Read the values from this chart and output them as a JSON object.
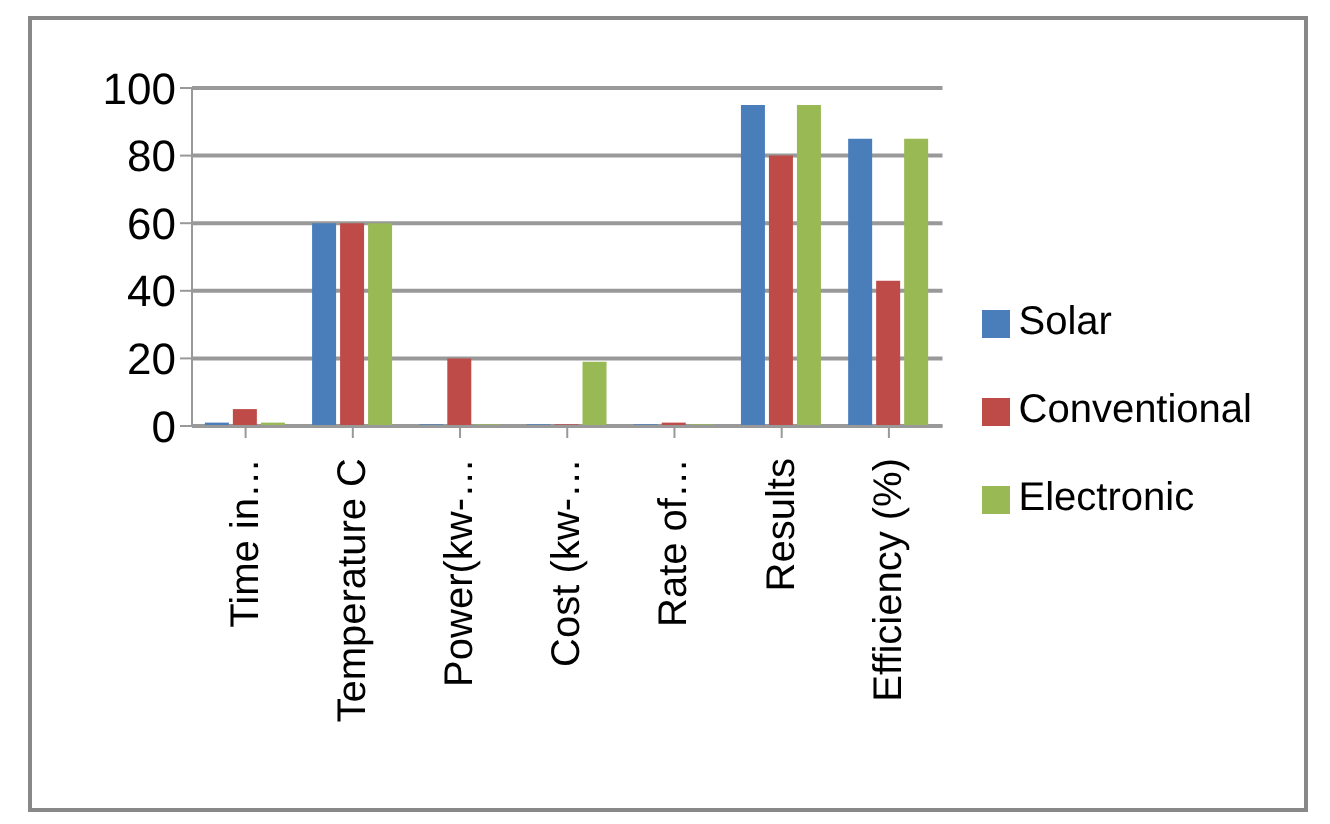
{
  "chart_data": {
    "type": "bar",
    "categories": [
      "Time in…",
      "Temperature C",
      "Power(kw-…",
      "Cost (kw-…",
      "Rate of…",
      "Results",
      "Efficiency (%)"
    ],
    "series": [
      {
        "name": "Solar",
        "color": "#4a7ebb",
        "values": [
          1,
          60,
          0.5,
          0.5,
          0.5,
          95,
          85
        ]
      },
      {
        "name": "Conventional",
        "color": "#be4b48",
        "values": [
          5,
          60,
          20,
          0.5,
          1,
          80,
          43
        ]
      },
      {
        "name": "Electronic",
        "color": "#98b954",
        "values": [
          1,
          60,
          0.5,
          19,
          0.5,
          95,
          85
        ]
      }
    ],
    "ylim": [
      0,
      100
    ],
    "yticks": [
      0,
      20,
      40,
      60,
      80,
      100
    ],
    "grid": "y",
    "legend": "right"
  }
}
